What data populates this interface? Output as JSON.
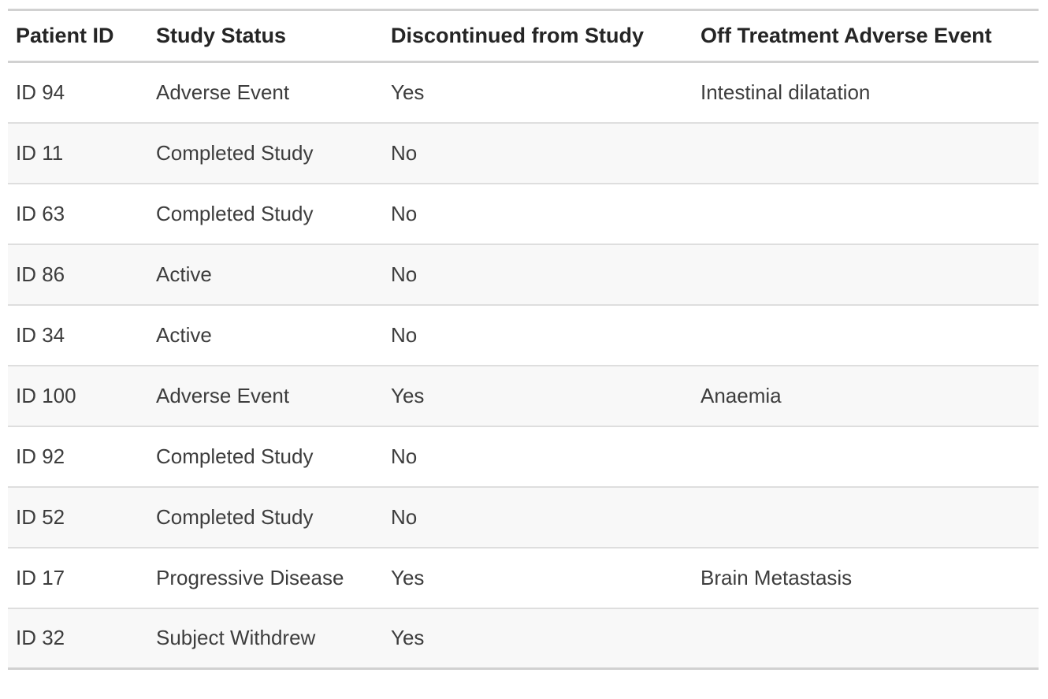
{
  "table": {
    "columns": [
      "Patient ID",
      "Study Status",
      "Discontinued from Study",
      "Off Treatment Adverse Event"
    ],
    "rows": [
      {
        "patient_id": "ID 94",
        "study_status": "Adverse Event",
        "discontinued": "Yes",
        "adverse_event": "Intestinal dilatation"
      },
      {
        "patient_id": "ID 11",
        "study_status": "Completed Study",
        "discontinued": "No",
        "adverse_event": ""
      },
      {
        "patient_id": "ID 63",
        "study_status": "Completed Study",
        "discontinued": "No",
        "adverse_event": ""
      },
      {
        "patient_id": "ID 86",
        "study_status": "Active",
        "discontinued": "No",
        "adverse_event": ""
      },
      {
        "patient_id": "ID 34",
        "study_status": "Active",
        "discontinued": "No",
        "adverse_event": ""
      },
      {
        "patient_id": "ID 100",
        "study_status": "Adverse Event",
        "discontinued": "Yes",
        "adverse_event": "Anaemia"
      },
      {
        "patient_id": "ID 92",
        "study_status": "Completed Study",
        "discontinued": "No",
        "adverse_event": ""
      },
      {
        "patient_id": "ID 52",
        "study_status": "Completed Study",
        "discontinued": "No",
        "adverse_event": ""
      },
      {
        "patient_id": "ID 17",
        "study_status": "Progressive Disease",
        "discontinued": "Yes",
        "adverse_event": "Brain Metastasis"
      },
      {
        "patient_id": "ID 32",
        "study_status": "Subject Withdrew",
        "discontinued": "Yes",
        "adverse_event": ""
      }
    ]
  },
  "colors": {
    "background": "#ffffff",
    "banded_row": "#f8f8f8",
    "row_separator": "#dedede",
    "header_border": "#d1d1d1",
    "header_text": "#252525",
    "row_text": "#3d3d3d"
  }
}
